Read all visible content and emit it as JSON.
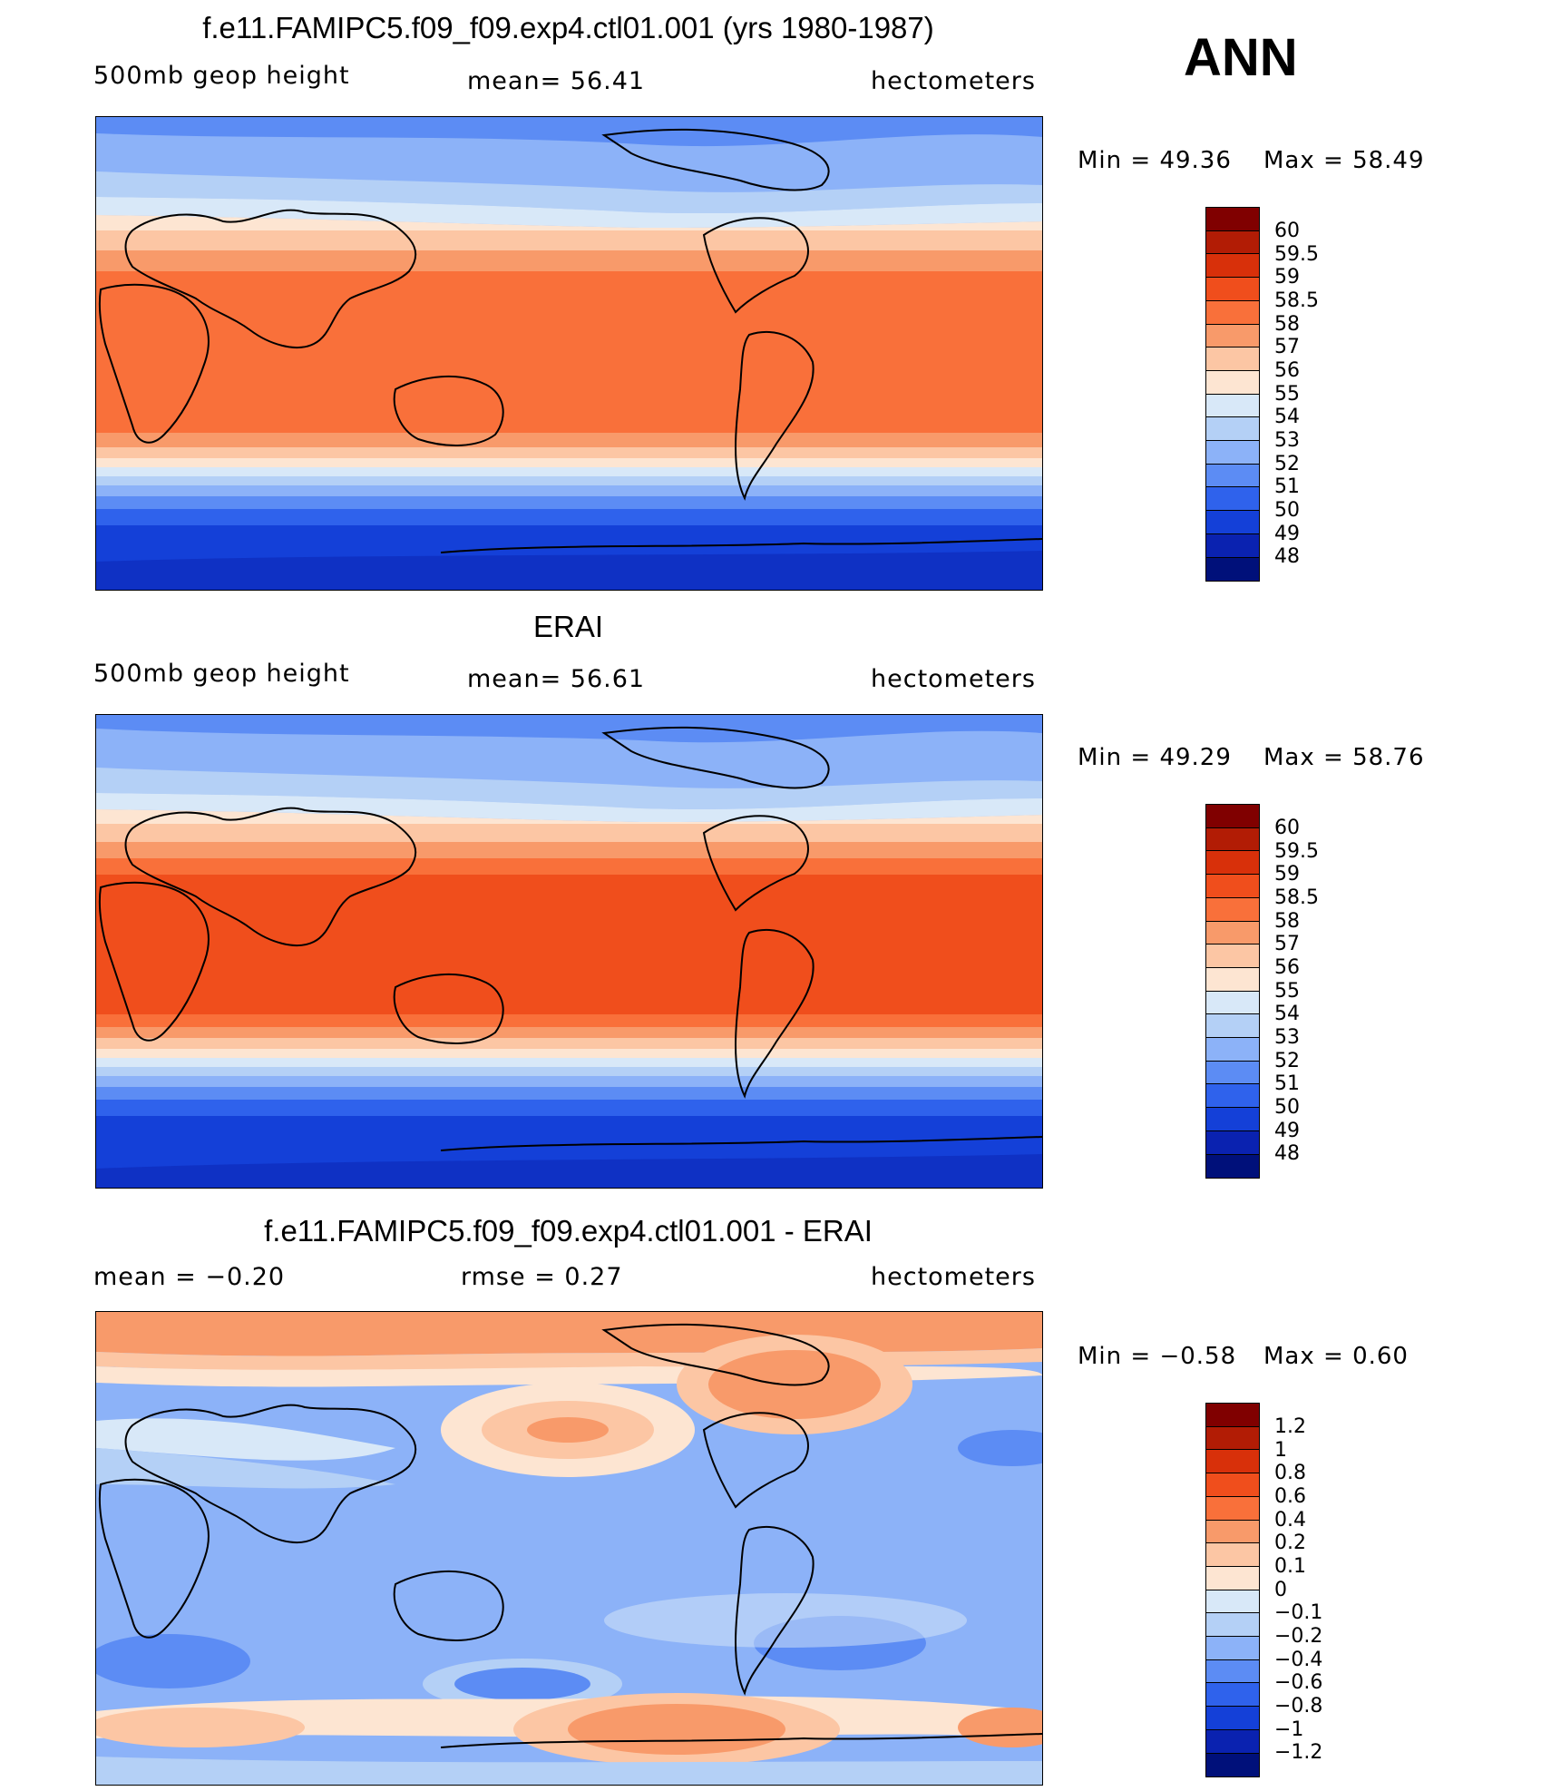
{
  "season": "ANN",
  "panels": [
    {
      "title": "f.e11.FAMIPC5.f09_f09.exp4.ctl01.001 (yrs 1980-1987)",
      "left_label": "500mb  geop  height",
      "center_label": "mean=   56.41",
      "units": "hectometers",
      "min_label": "Min  =    49.36",
      "max_label": "Max  =    58.49"
    },
    {
      "title": "ERAI",
      "left_label": "500mb  geop  height",
      "center_label": "mean=   56.61",
      "units": "hectometers",
      "min_label": "Min  =    49.29",
      "max_label": "Max  =    58.76"
    },
    {
      "title": "f.e11.FAMIPC5.f09_f09.exp4.ctl01.001 - ERAI",
      "left_label": "mean  =    −0.20",
      "center_label": "rmse  =     0.27",
      "units": "hectometers",
      "min_label": "Min  =    −0.58",
      "max_label": "Max  =     0.60"
    }
  ],
  "colorbars": {
    "abs": {
      "labels": [
        "60",
        "59.5",
        "59",
        "58.5",
        "58",
        "57",
        "56",
        "55",
        "54",
        "53",
        "52",
        "51",
        "50",
        "49",
        "48"
      ],
      "colors": [
        "#800000",
        "#b21c05",
        "#d8300a",
        "#f04e1c",
        "#f9703a",
        "#f89a6a",
        "#fcc6a4",
        "#fde5d2",
        "#d8e8f8",
        "#b4d0f6",
        "#8cb2f8",
        "#5c8cf4",
        "#2f62ec",
        "#1440d8",
        "#0a22b0",
        "#00107a"
      ]
    },
    "diff": {
      "labels": [
        "1.2",
        "1",
        "0.8",
        "0.6",
        "0.4",
        "0.2",
        "0.1",
        "0",
        "−0.1",
        "−0.2",
        "−0.4",
        "−0.6",
        "−0.8",
        "−1",
        "−1.2"
      ],
      "colors": [
        "#800000",
        "#b21c05",
        "#d8300a",
        "#f04e1c",
        "#f9703a",
        "#f89a6a",
        "#fcc6a4",
        "#fde5d2",
        "#d8e8f8",
        "#b4d0f6",
        "#8cb2f8",
        "#5c8cf4",
        "#2f62ec",
        "#1440d8",
        "#0a22b0",
        "#00107a"
      ]
    }
  }
}
